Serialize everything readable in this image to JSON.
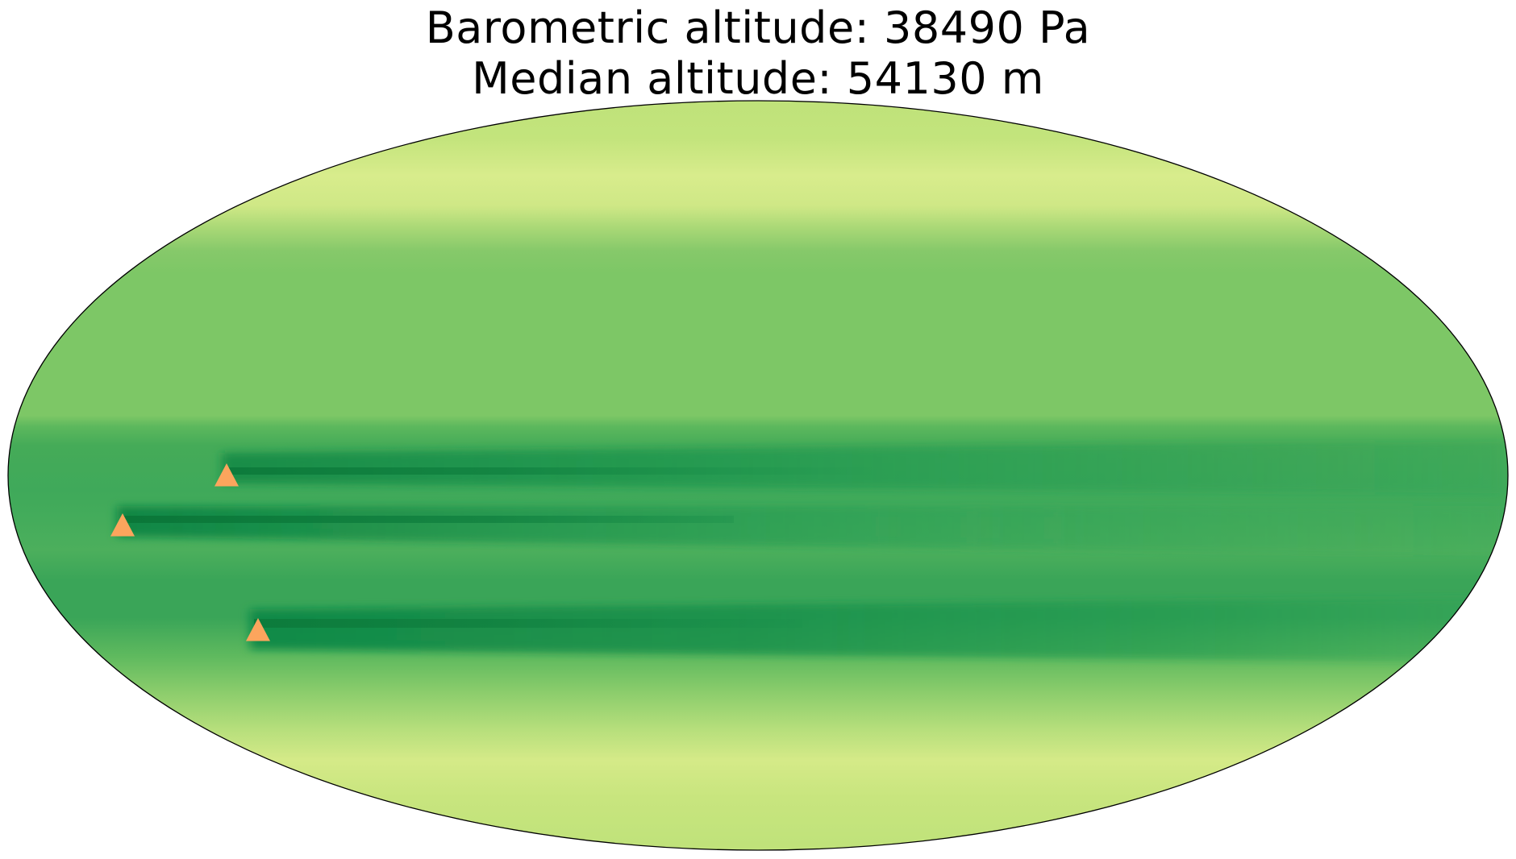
{
  "title": {
    "line1": "Barometric altitude: 38490 Pa",
    "line2": "Median altitude: 54130 m"
  },
  "map": {
    "projection": "Mollweide (global, elliptical outline)",
    "colormap": "yellow-green (light at poles, dark green at low latitudes)",
    "colors": {
      "outline": "#000000",
      "marker": "#fca55d",
      "pole_band": "#bfe27a",
      "bright_band": "#d8ec8c",
      "mid_lat": "#7dc766",
      "low_lat": "#3fa95a",
      "dark_core": "#18904c",
      "streak": "#0b7a3a"
    },
    "markers": [
      {
        "symbol": "triangle-icon",
        "color": "#fca55d"
      },
      {
        "symbol": "triangle-icon",
        "color": "#fca55d"
      },
      {
        "symbol": "triangle-icon",
        "color": "#fca55d"
      }
    ]
  }
}
